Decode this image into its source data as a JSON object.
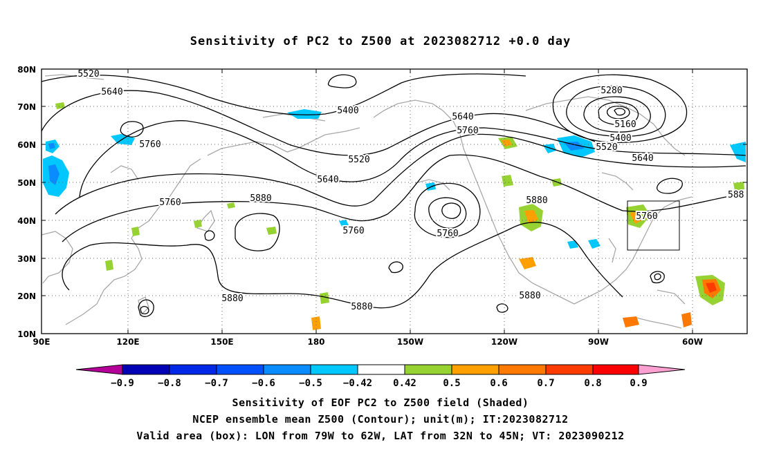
{
  "title": "Sensitivity of PC2 to Z500 at 2023082712 +0.0 day",
  "axes": {
    "lat_labels": [
      "80N",
      "70N",
      "60N",
      "50N",
      "40N",
      "30N",
      "20N",
      "10N"
    ],
    "lon_labels": [
      "90E",
      "120E",
      "150E",
      "180",
      "150W",
      "120W",
      "90W",
      "60W"
    ]
  },
  "contour_labels": [
    "5520",
    "5640",
    "5400",
    "5760",
    "5520",
    "5640",
    "5760",
    "5880",
    "5760",
    "5880",
    "5640",
    "5760",
    "5280",
    "5160",
    "5400",
    "5520",
    "5640",
    "5760",
    "5880",
    "5880",
    "5880",
    "588"
  ],
  "colorbar": {
    "ticks": [
      "−0.9",
      "−0.8",
      "−0.7",
      "−0.6",
      "−0.5",
      "−0.42",
      "0.42",
      "0.5",
      "0.6",
      "0.7",
      "0.8",
      "0.9"
    ],
    "colors": [
      "#b40099",
      "#0000b4",
      "#0028e6",
      "#0050ff",
      "#0a8cff",
      "#00c8ff",
      "#ffffff",
      "#96d232",
      "#ffa000",
      "#ff7800",
      "#ff3c00",
      "#ff0000",
      "#ffa0d2"
    ]
  },
  "valid_box": {
    "lon": [
      "79W",
      "62W"
    ],
    "lat": [
      "32N",
      "45N"
    ]
  },
  "captions": [
    "Sensitivity of EOF PC2 to Z500 field (Shaded)",
    "NCEP ensemble mean Z500 (Contour); unit(m); IT:2023082712",
    "Valid area (box): LON from 79W to 62W, LAT from 32N to 45N; VT: 2023090212"
  ],
  "icon_names": [
    "colorbar-left-arrow",
    "colorbar-right-arrow"
  ]
}
